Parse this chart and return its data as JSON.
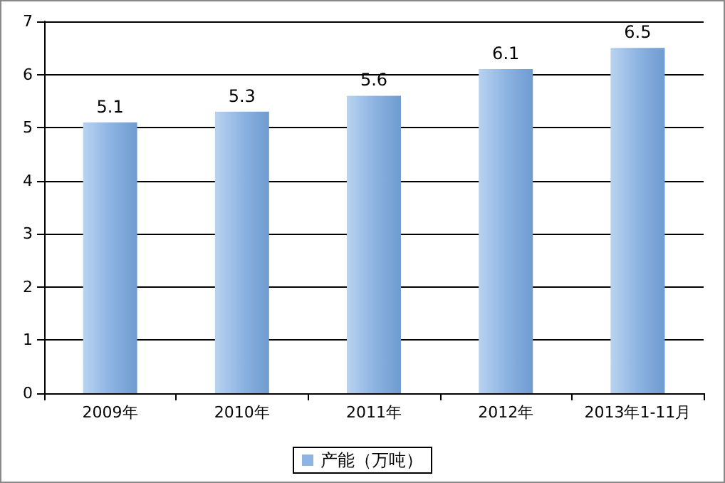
{
  "chart_data": {
    "type": "bar",
    "categories": [
      "2009年",
      "2010年",
      "2011年",
      "2012年",
      "2013年1-11月"
    ],
    "series": [
      {
        "name": "产能（万吨）",
        "color": "#8db4e2",
        "values": [
          5.1,
          5.3,
          5.6,
          6.1,
          6.5
        ]
      }
    ],
    "ylim": [
      0,
      7
    ],
    "yticks": [
      0,
      1,
      2,
      3,
      4,
      5,
      6,
      7
    ],
    "grid": "y",
    "legend": "bottom",
    "data_labels": true
  }
}
